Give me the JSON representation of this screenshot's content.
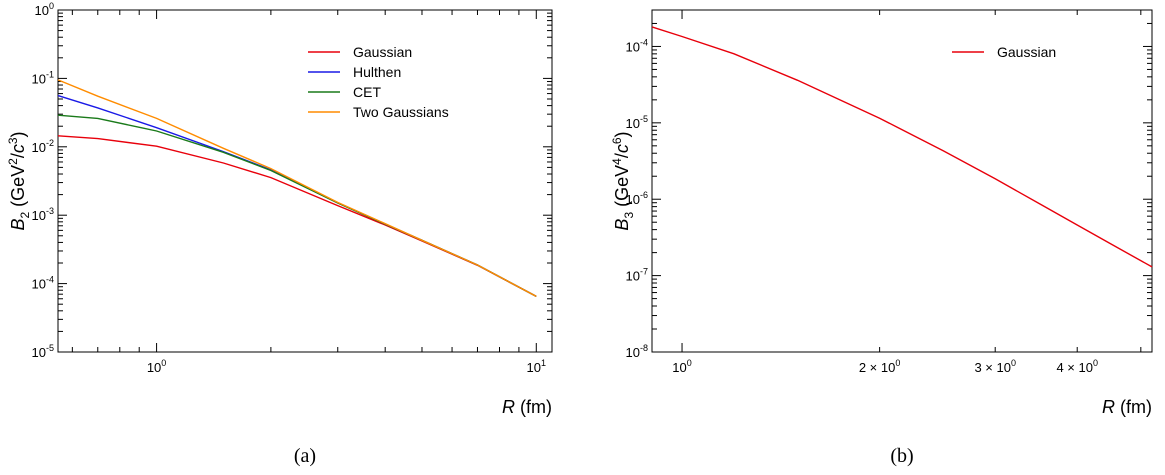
{
  "chart_data": [
    {
      "type": "line",
      "panel_label": "(a)",
      "x_scale": "log",
      "y_scale": "log",
      "xlabel_sym": "R",
      "xlabel_unit": " (fm)",
      "ylabel_sym": "B",
      "ylabel_sub": "2",
      "ylabel_unit_pre": " (GeV",
      "ylabel_unit_sup1": "2",
      "ylabel_unit_mid": "/",
      "ylabel_unit_c": "c",
      "ylabel_unit_sup2": "3",
      "ylabel_unit_post": ")",
      "xlim": [
        0.55,
        11
      ],
      "ylim": [
        1e-05,
        1
      ],
      "x_ticks": [
        {
          "value": 1,
          "base": "10",
          "exp": "0"
        },
        {
          "value": 10,
          "base": "10",
          "exp": "1"
        }
      ],
      "y_ticks": [
        {
          "value": 1e-05,
          "base": "10",
          "exp": "-5"
        },
        {
          "value": 0.0001,
          "base": "10",
          "exp": "-4"
        },
        {
          "value": 0.001,
          "base": "10",
          "exp": "-3"
        },
        {
          "value": 0.01,
          "base": "10",
          "exp": "-2"
        },
        {
          "value": 0.1,
          "base": "10",
          "exp": "-1"
        },
        {
          "value": 1,
          "base": "10",
          "exp": "0"
        }
      ],
      "legend_position": "top-right",
      "series": [
        {
          "name": "Gaussian",
          "color": "#e8000b",
          "x": [
            0.55,
            0.7,
            1.0,
            1.5,
            2.0,
            3.0,
            4.0,
            5.0,
            7.0,
            10.0
          ],
          "y": [
            0.0145,
            0.0132,
            0.0102,
            0.0058,
            0.00355,
            0.00138,
            0.00072,
            0.00042,
            0.000185,
            6.5e-05
          ]
        },
        {
          "name": "Hulthen",
          "color": "#1a1ae6",
          "x": [
            0.55,
            0.7,
            1.0,
            1.5,
            2.0,
            3.0,
            4.0,
            5.0,
            7.0,
            10.0
          ],
          "y": [
            0.056,
            0.037,
            0.019,
            0.0085,
            0.0046,
            0.00152,
            0.00074,
            0.00043,
            0.000187,
            6.5e-05
          ]
        },
        {
          "name": "CET",
          "color": "#1a7a1a",
          "x": [
            0.55,
            0.7,
            1.0,
            1.5,
            2.0,
            3.0,
            4.0,
            5.0,
            7.0,
            10.0
          ],
          "y": [
            0.029,
            0.026,
            0.017,
            0.0083,
            0.0045,
            0.00151,
            0.00074,
            0.00043,
            0.000187,
            6.5e-05
          ]
        },
        {
          "name": "Two Gaussians",
          "color": "#ff8c00",
          "x": [
            0.55,
            0.7,
            1.0,
            1.5,
            2.0,
            3.0,
            4.0,
            5.0,
            7.0,
            10.0
          ],
          "y": [
            0.095,
            0.055,
            0.026,
            0.0095,
            0.0048,
            0.00154,
            0.00075,
            0.00043,
            0.000187,
            6.5e-05
          ]
        }
      ]
    },
    {
      "type": "line",
      "panel_label": "(b)",
      "x_scale": "log",
      "y_scale": "log",
      "xlabel_sym": "R",
      "xlabel_unit": " (fm)",
      "ylabel_sym": "B",
      "ylabel_sub": "3",
      "ylabel_unit_pre": " (GeV",
      "ylabel_unit_sup1": "4",
      "ylabel_unit_mid": "/",
      "ylabel_unit_c": "c",
      "ylabel_unit_sup2": "6",
      "ylabel_unit_post": ")",
      "xlim": [
        0.9,
        5.2
      ],
      "ylim": [
        1e-08,
        0.0003
      ],
      "x_ticks": [
        {
          "value": 1,
          "base": "10",
          "exp": "0"
        },
        {
          "value": 2,
          "base": "2 × 10",
          "exp": "0"
        },
        {
          "value": 3,
          "base": "3 × 10",
          "exp": "0"
        },
        {
          "value": 4,
          "base": "4 × 10",
          "exp": "0"
        }
      ],
      "y_ticks": [
        {
          "value": 1e-08,
          "base": "10",
          "exp": "-8"
        },
        {
          "value": 1e-07,
          "base": "10",
          "exp": "-7"
        },
        {
          "value": 1e-06,
          "base": "10",
          "exp": "-6"
        },
        {
          "value": 1e-05,
          "base": "10",
          "exp": "-5"
        },
        {
          "value": 0.0001,
          "base": "10",
          "exp": "-4"
        }
      ],
      "legend_position": "top-right",
      "series": [
        {
          "name": "Gaussian",
          "color": "#e8000b",
          "x": [
            0.9,
            1.0,
            1.2,
            1.5,
            2.0,
            2.5,
            3.0,
            3.5,
            4.0,
            4.5,
            5.2
          ],
          "y": [
            0.00018,
            0.000135,
            8e-05,
            3.6e-05,
            1.15e-05,
            4.3e-06,
            1.85e-06,
            8.8e-07,
            4.6e-07,
            2.6e-07,
            1.3e-07
          ]
        }
      ]
    }
  ]
}
